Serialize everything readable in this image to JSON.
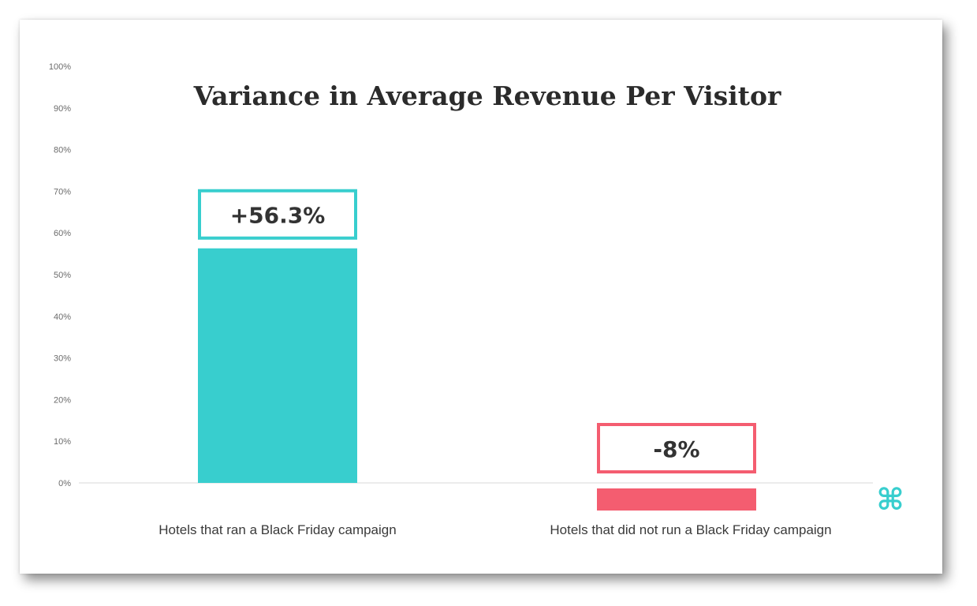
{
  "chart_data": {
    "type": "bar",
    "title": "Variance in Average Revenue Per Visitor",
    "categories": [
      "Hotels that ran a Black Friday campaign",
      "Hotels that did not run a Black Friday campaign"
    ],
    "values": [
      56.3,
      -8
    ],
    "data_labels": [
      "+56.3%",
      "-8%"
    ],
    "colors": [
      "#38cece",
      "#f45d70"
    ],
    "ylim": [
      0,
      100
    ],
    "yticks": [
      "0%",
      "10%",
      "20%",
      "30%",
      "40%",
      "50%",
      "60%",
      "70%",
      "80%",
      "90%",
      "100%"
    ],
    "grid": false,
    "xlabel": "",
    "ylabel": ""
  },
  "logo": {
    "glyph": "⌘",
    "color": "#38cece"
  }
}
